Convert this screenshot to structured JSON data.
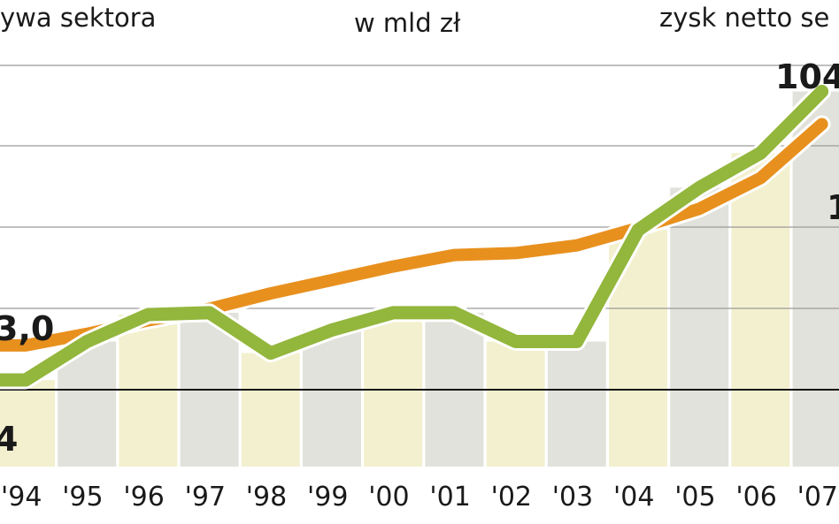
{
  "chart_data": {
    "type": "line",
    "title": "w mld zł",
    "left_header": "ywa sektora",
    "right_header": "zysk netto se",
    "categories": [
      "'94",
      "'95",
      "'96",
      "'97",
      "'98",
      "'99",
      "'00",
      "'01",
      "'02",
      "'03",
      "'04",
      "'05",
      "'06",
      "'07"
    ],
    "series": [
      {
        "name": "ywa sektora",
        "color": "#e8901e",
        "values": [
          63,
          69,
          76,
          82,
          90,
          97,
          104,
          110,
          111,
          115,
          124,
          134,
          150,
          178
        ]
      },
      {
        "name": "zysk netto se",
        "color": "#93b63c",
        "values": [
          45,
          65,
          79,
          80,
          59,
          71,
          80,
          80,
          65,
          65,
          123,
          145,
          163,
          195
        ]
      }
    ],
    "bar_colors": [
      "#f3f0cf",
      "#e2e2dc"
    ],
    "annotations": {
      "left_value_top": "3,0",
      "left_value_bottom": "4",
      "right_value_top": "104",
      "right_value_mid": "1"
    },
    "ylim": [
      0,
      215
    ],
    "grid": true
  }
}
